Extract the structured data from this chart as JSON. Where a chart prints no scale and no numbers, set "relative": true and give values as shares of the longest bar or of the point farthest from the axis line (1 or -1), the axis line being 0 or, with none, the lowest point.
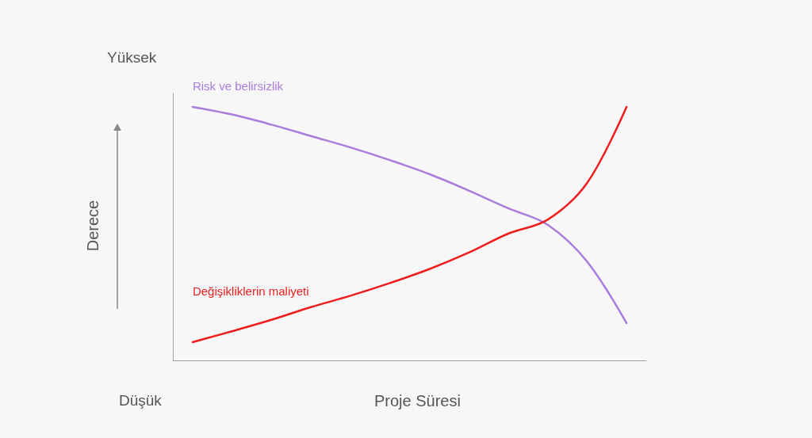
{
  "chart_data": {
    "type": "line",
    "relative": true,
    "xlabel": "Proje Süresi",
    "ylabel": "Derece",
    "annotations": [
      "Yüksek",
      "Düşük"
    ],
    "categories": [
      null,
      null,
      null,
      null,
      null,
      null,
      null,
      null,
      null,
      null,
      null,
      null
    ],
    "series": [
      {
        "name": "Risk ve belirsizlik",
        "color": "#a87ddb",
        "values": [
          1.0,
          0.97,
          0.93,
          0.885,
          0.84,
          0.79,
          0.735,
          0.67,
          0.6,
          0.535,
          0.39,
          0.147
        ]
      },
      {
        "name": "Değişikliklerin maliyeti",
        "color": "#ee1c1c",
        "values": [
          0.072,
          0.115,
          0.16,
          0.21,
          0.255,
          0.305,
          0.36,
          0.425,
          0.5,
          0.555,
          0.7,
          1.0
        ]
      }
    ],
    "legend": false,
    "grid": false,
    "marker": "none",
    "line_style": "solid"
  }
}
